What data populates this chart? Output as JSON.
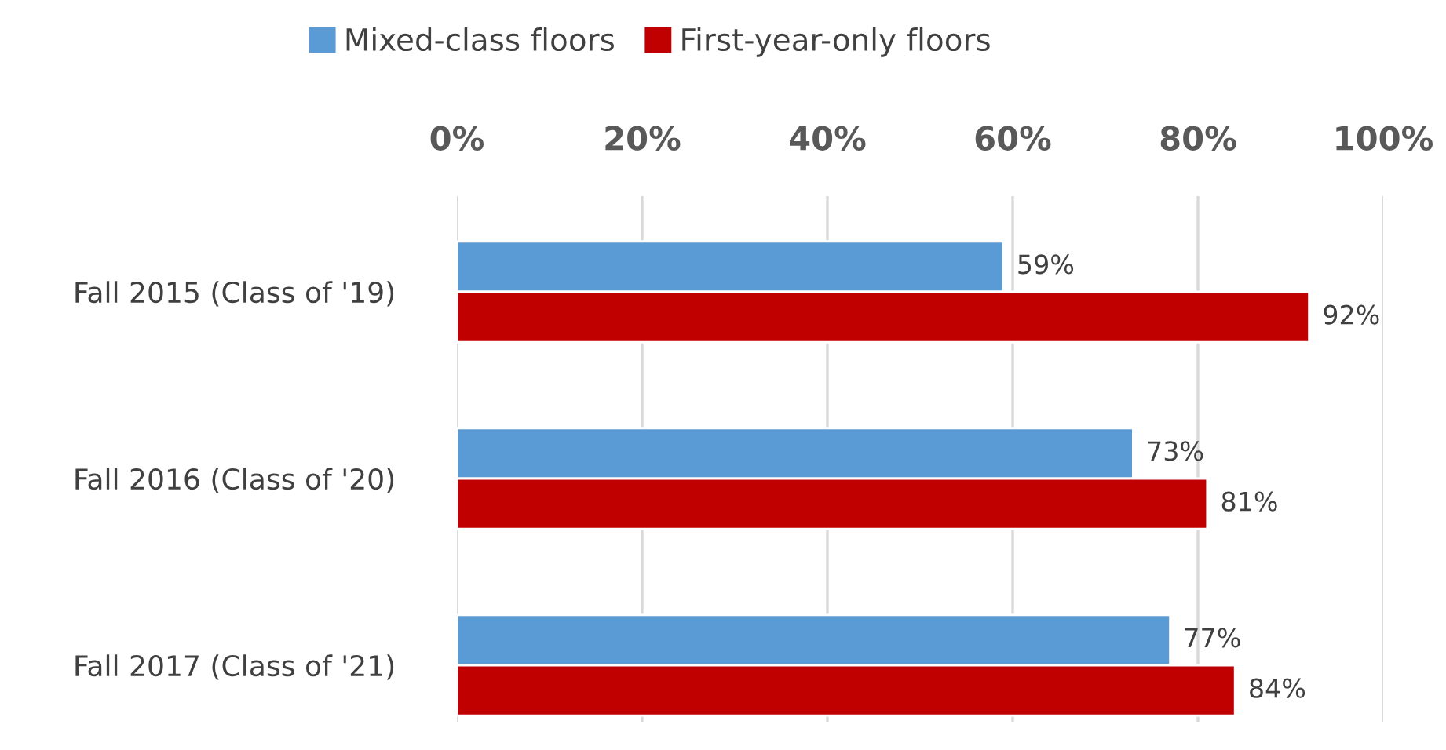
{
  "chart_data": {
    "type": "bar",
    "orientation": "horizontal",
    "categories": [
      "Fall 2015 (Class of '19)",
      "Fall 2016 (Class of '20)",
      "Fall 2017 (Class of '21)"
    ],
    "series": [
      {
        "name": "Mixed-class floors",
        "color": "#5b9bd5",
        "values": [
          59,
          73,
          77
        ],
        "value_labels": [
          "59%",
          "73%",
          "77%"
        ]
      },
      {
        "name": "First-year-only floors",
        "color": "#c00000",
        "values": [
          92,
          81,
          84
        ],
        "value_labels": [
          "92%",
          "81%",
          "84%"
        ]
      }
    ],
    "xlim": [
      0,
      100
    ],
    "xticks": [
      {
        "value": 0,
        "label": "0%"
      },
      {
        "value": 20,
        "label": "20%"
      },
      {
        "value": 40,
        "label": "40%"
      },
      {
        "value": 60,
        "label": "60%"
      },
      {
        "value": 80,
        "label": "80%"
      },
      {
        "value": 100,
        "label": "100%"
      }
    ],
    "grid": "x",
    "legend": "top"
  }
}
